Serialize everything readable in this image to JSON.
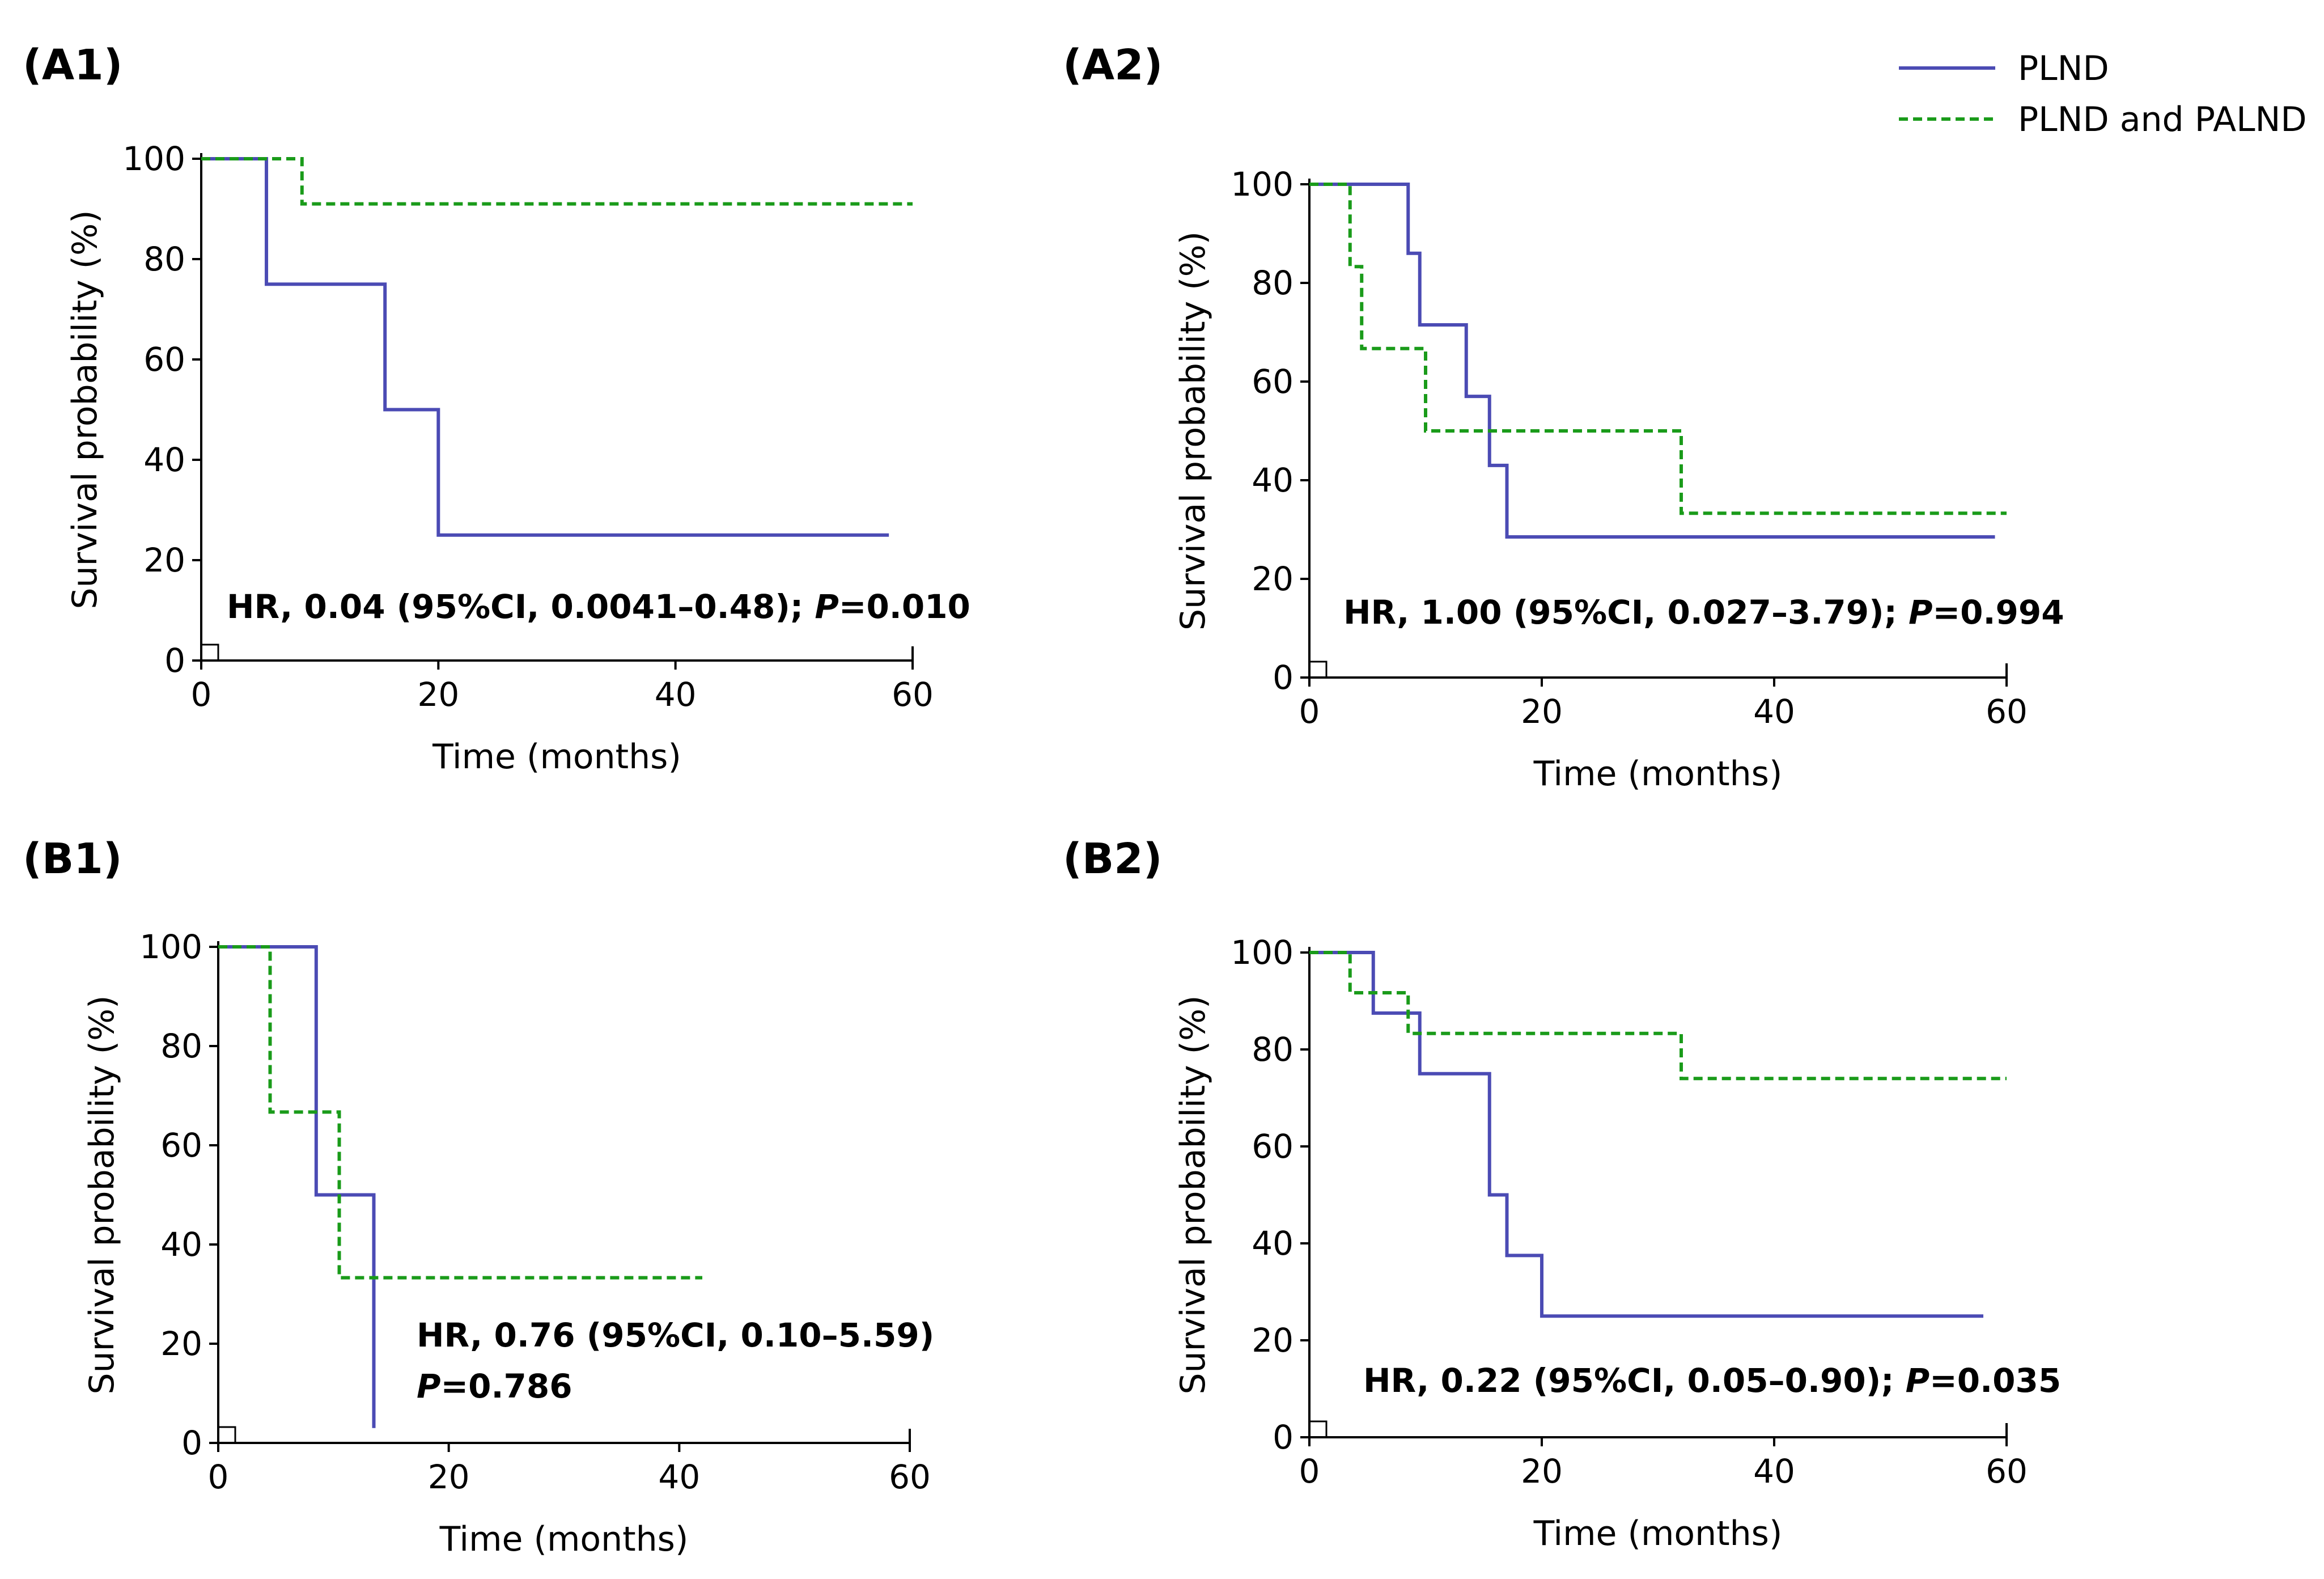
{
  "legend": {
    "position": "top-right",
    "entries": [
      {
        "name": "PLND",
        "color": "#4B4BB4",
        "style": "solid"
      },
      {
        "name": "PLND and PALND",
        "color": "#1A9B1A",
        "style": "dashed"
      }
    ]
  },
  "chart_data": [
    {
      "id": "A1",
      "label": "(A1)",
      "type": "line",
      "subtype": "kaplan-meier",
      "xlabel": "Time (months)",
      "ylabel": "Survival probability (%)",
      "xlim": [
        0,
        60
      ],
      "ylim": [
        0,
        100
      ],
      "xticks": [
        "0",
        "20",
        "40",
        "60"
      ],
      "yticks": [
        "0",
        "20",
        "40",
        "60",
        "80",
        "100"
      ],
      "hr_text": "HR, 0.04 (95%CI, 0.0041–0.48);",
      "p_label": "P",
      "p_value": "=0.010",
      "series": [
        {
          "name": "PLND",
          "x": [
            0,
            5.5,
            15.5,
            20,
            58
          ],
          "y": [
            100,
            75,
            50,
            25,
            25
          ]
        },
        {
          "name": "PLND and PALND",
          "x": [
            0,
            8.5,
            60
          ],
          "y": [
            100,
            91,
            91
          ]
        }
      ]
    },
    {
      "id": "A2",
      "label": "(A2)",
      "type": "line",
      "subtype": "kaplan-meier",
      "xlabel": "Time (months)",
      "ylabel": "Survival probability (%)",
      "xlim": [
        0,
        60
      ],
      "ylim": [
        0,
        100
      ],
      "xticks": [
        "0",
        "20",
        "40",
        "60"
      ],
      "yticks": [
        "0",
        "20",
        "40",
        "60",
        "80",
        "100"
      ],
      "hr_text": "HR, 1.00 (95%CI, 0.027–3.79);",
      "p_label": "P",
      "p_value": "=0.994",
      "series": [
        {
          "name": "PLND",
          "x": [
            0,
            8.5,
            9.5,
            13.5,
            15.5,
            17,
            59
          ],
          "y": [
            100,
            86,
            71.5,
            57,
            43,
            28.5,
            28.5
          ]
        },
        {
          "name": "PLND and PALND",
          "x": [
            0,
            3.5,
            4.5,
            10,
            32,
            60
          ],
          "y": [
            100,
            83.3,
            66.7,
            50,
            33.3,
            33.3
          ]
        }
      ]
    },
    {
      "id": "B1",
      "label": "(B1)",
      "type": "line",
      "subtype": "kaplan-meier",
      "xlabel": "Time (months)",
      "ylabel": "Survival probability (%)",
      "xlim": [
        0,
        60
      ],
      "ylim": [
        0,
        100
      ],
      "xticks": [
        "0",
        "20",
        "40",
        "60"
      ],
      "yticks": [
        "0",
        "20",
        "40",
        "60",
        "80",
        "100"
      ],
      "hr_text": "HR, 0.76 (95%CI, 0.10–5.59)",
      "p_label": "P",
      "p_value": "=0.786",
      "series": [
        {
          "name": "PLND",
          "x": [
            0,
            8.5,
            13.5
          ],
          "y": [
            100,
            50,
            3
          ]
        },
        {
          "name": "PLND and PALND",
          "x": [
            0,
            4.5,
            10.5,
            42
          ],
          "y": [
            100,
            66.7,
            33.3,
            33.3
          ]
        }
      ]
    },
    {
      "id": "B2",
      "label": "(B2)",
      "type": "line",
      "subtype": "kaplan-meier",
      "xlabel": "Time (months)",
      "ylabel": "Survival probability (%)",
      "xlim": [
        0,
        60
      ],
      "ylim": [
        0,
        100
      ],
      "xticks": [
        "0",
        "20",
        "40",
        "60"
      ],
      "yticks": [
        "0",
        "20",
        "40",
        "60",
        "80",
        "100"
      ],
      "hr_text": "HR, 0.22 (95%CI, 0.05–0.90);",
      "p_label": "P",
      "p_value": "=0.035",
      "series": [
        {
          "name": "PLND",
          "x": [
            0,
            5.5,
            9.5,
            15.5,
            17,
            20,
            58
          ],
          "y": [
            100,
            87.5,
            75,
            50,
            37.5,
            25,
            25
          ]
        },
        {
          "name": "PLND and PALND",
          "x": [
            0,
            3.5,
            8.5,
            32,
            60
          ],
          "y": [
            100,
            91.7,
            83.3,
            74,
            74
          ]
        }
      ]
    }
  ]
}
